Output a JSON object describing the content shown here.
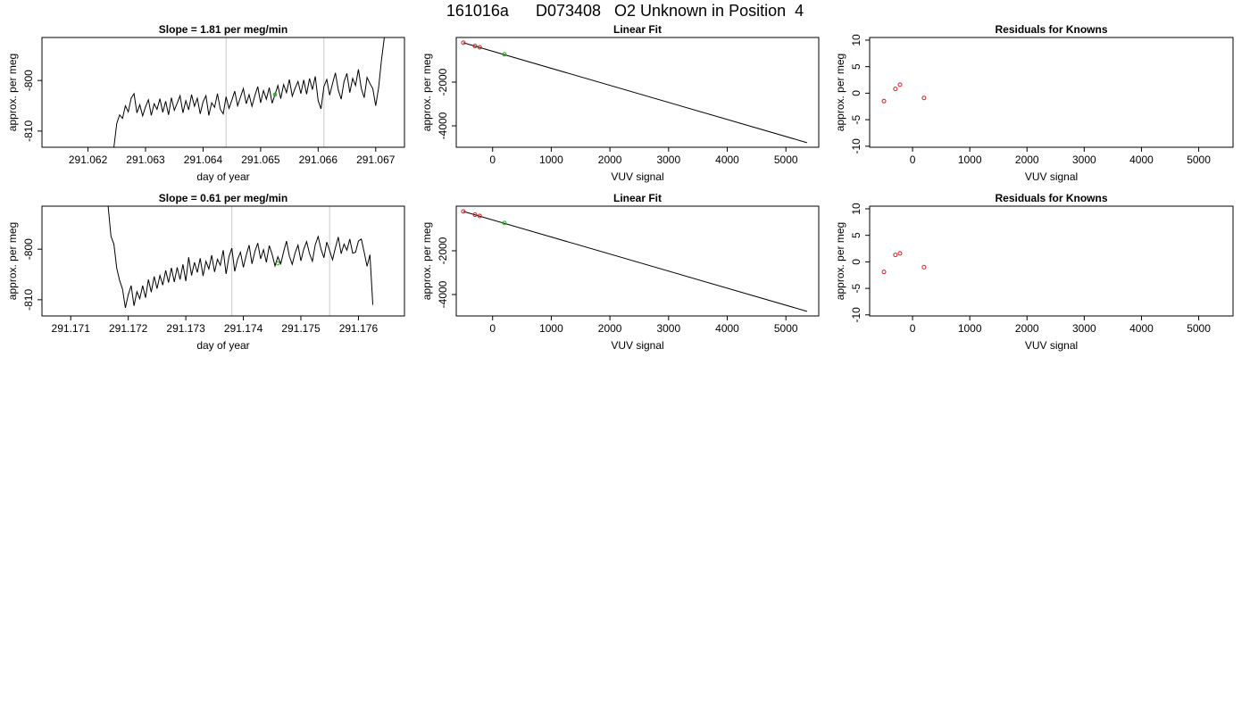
{
  "page": {
    "title": "161016a      D073408   O2 Unknown in Position  4"
  },
  "chart_data": [
    {
      "type": "line",
      "title": "Slope =  1.81  per meg/min",
      "xlabel": "day of year",
      "ylabel": "approx. per meg",
      "xlim": [
        291.0612,
        291.0675
      ],
      "ylim": [
        -813.2,
        -791.5
      ],
      "xticks": [
        291.062,
        291.063,
        291.064,
        291.065,
        291.066,
        291.067
      ],
      "xtick_labels": [
        "291.062",
        "291.063",
        "291.064",
        "291.065",
        "291.066",
        "291.067"
      ],
      "yticks": [
        -810,
        -800
      ],
      "ytick_labels": [
        "-810",
        "-800"
      ],
      "vlines": [
        291.0644,
        291.0661
      ],
      "highlight_point": {
        "x": 291.06525,
        "y": -802.8,
        "color": "#22aa22"
      },
      "series": [
        {
          "color": "#000000",
          "x": [
            291.06245,
            291.0625,
            291.06255,
            291.0626,
            291.06265,
            291.0627,
            291.06275,
            291.0628,
            291.06285,
            291.0629,
            291.06295,
            291.063,
            291.06305,
            291.0631,
            291.06315,
            291.0632,
            291.06325,
            291.0633,
            291.06335,
            291.0634,
            291.06345,
            291.0635,
            291.06355,
            291.0636,
            291.06365,
            291.0637,
            291.06375,
            291.0638,
            291.06385,
            291.0639,
            291.06395,
            291.064,
            291.06405,
            291.0641,
            291.06415,
            291.0642,
            291.06425,
            291.0643,
            291.06435,
            291.0644,
            291.06445,
            291.0645,
            291.06455,
            291.0646,
            291.06465,
            291.0647,
            291.06475,
            291.0648,
            291.06485,
            291.0649,
            291.06495,
            291.065,
            291.06505,
            291.0651,
            291.06515,
            291.0652,
            291.06525,
            291.0653,
            291.06535,
            291.0654,
            291.06545,
            291.0655,
            291.06555,
            291.0656,
            291.06565,
            291.0657,
            291.06575,
            291.0658,
            291.06585,
            291.0659,
            291.06595,
            291.066,
            291.06605,
            291.0661,
            291.06615,
            291.0662,
            291.06625,
            291.0663,
            291.06635,
            291.0664,
            291.06645,
            291.0665,
            291.06655,
            291.0666,
            291.06665,
            291.0667,
            291.06675,
            291.0668,
            291.06685,
            291.0669,
            291.06695,
            291.067,
            291.06705,
            291.0671,
            291.06715
          ],
          "y": [
            -813.2,
            -808.5,
            -806.8,
            -807.5,
            -805.0,
            -806.2,
            -803.5,
            -802.6,
            -806.4,
            -804.8,
            -807.0,
            -805.2,
            -803.8,
            -806.9,
            -804.6,
            -805.7,
            -803.6,
            -806.3,
            -804.1,
            -806.8,
            -803.4,
            -805.9,
            -804.5,
            -803.0,
            -806.4,
            -804.0,
            -805.8,
            -802.8,
            -805.1,
            -803.5,
            -806.6,
            -804.2,
            -803.0,
            -806.9,
            -804.4,
            -805.3,
            -802.6,
            -805.7,
            -806.6,
            -803.2,
            -805.5,
            -803.9,
            -802.1,
            -805.0,
            -803.3,
            -801.6,
            -804.6,
            -802.8,
            -805.1,
            -803.0,
            -801.2,
            -804.4,
            -802.0,
            -803.7,
            -801.4,
            -804.5,
            -802.8,
            -801.0,
            -803.6,
            -800.8,
            -802.4,
            -799.8,
            -803.1,
            -801.5,
            -800.2,
            -802.6,
            -799.9,
            -802.7,
            -799.6,
            -801.8,
            -799.2,
            -804.0,
            -805.6,
            -801.2,
            -799.8,
            -802.9,
            -800.6,
            -798.5,
            -801.9,
            -803.7,
            -800.2,
            -798.6,
            -802.4,
            -799.6,
            -801.0,
            -797.8,
            -801.6,
            -803.4,
            -799.4,
            -800.6,
            -801.6,
            -805.0,
            -801.5,
            -796.0,
            -791.5
          ]
        }
      ]
    },
    {
      "type": "scatter",
      "title": "Linear Fit",
      "xlabel": "VUV signal",
      "ylabel": "approx. per meg",
      "xlim": [
        -620,
        5560
      ],
      "ylim": [
        -4980,
        40
      ],
      "xticks": [
        0,
        1000,
        2000,
        3000,
        4000,
        5000
      ],
      "xtick_labels": [
        "0",
        "1000",
        "2000",
        "3000",
        "4000",
        "5000"
      ],
      "yticks": [
        -4000,
        -2000
      ],
      "ytick_labels": [
        "-4000",
        "-2000"
      ],
      "fit_line": {
        "x": [
          -500,
          5360
        ],
        "y": [
          -200,
          -4770
        ]
      },
      "points": [
        {
          "x": -500,
          "y": -200,
          "color": "#cc2222"
        },
        {
          "x": -300,
          "y": -350,
          "color": "#cc2222"
        },
        {
          "x": -220,
          "y": -410,
          "color": "#cc2222"
        },
        {
          "x": 200,
          "y": -730,
          "color": "#22aa22"
        }
      ]
    },
    {
      "type": "scatter",
      "title": "Residuals for Knowns",
      "xlabel": "VUV signal",
      "ylabel": "approx. per meg",
      "xlim": [
        -750,
        5600
      ],
      "ylim": [
        -10.2,
        10.5
      ],
      "xticks": [
        0,
        1000,
        2000,
        3000,
        4000,
        5000
      ],
      "xtick_labels": [
        "0",
        "1000",
        "2000",
        "3000",
        "4000",
        "5000"
      ],
      "yticks": [
        -10,
        -5,
        0,
        5,
        10
      ],
      "ytick_labels": [
        "-10",
        "-5",
        "0",
        "5",
        "10"
      ],
      "points": [
        {
          "x": -500,
          "y": -1.5,
          "color": "#cc2222"
        },
        {
          "x": -300,
          "y": 0.8,
          "color": "#cc2222"
        },
        {
          "x": -220,
          "y": 1.6,
          "color": "#cc2222"
        },
        {
          "x": 200,
          "y": -0.9,
          "color": "#cc2222"
        }
      ]
    },
    {
      "type": "line",
      "title": "Slope =  0.61  per meg/min",
      "xlabel": "day of year",
      "ylabel": "approx. per meg",
      "xlim": [
        291.1705,
        291.1768
      ],
      "ylim": [
        -813.2,
        -791.5
      ],
      "xticks": [
        291.171,
        291.172,
        291.173,
        291.174,
        291.175,
        291.176
      ],
      "xtick_labels": [
        "291.171",
        "291.172",
        "291.173",
        "291.174",
        "291.175",
        "291.176"
      ],
      "yticks": [
        -810,
        -800
      ],
      "ytick_labels": [
        "-810",
        "-800"
      ],
      "vlines": [
        291.1738,
        291.1755
      ],
      "highlight_point": {
        "x": 291.1746,
        "y": -802.8,
        "color": "#22aa22"
      },
      "series": [
        {
          "color": "#000000",
          "x": [
            291.17165,
            291.1717,
            291.17175,
            291.1718,
            291.17185,
            291.1719,
            291.17195,
            291.172,
            291.17205,
            291.1721,
            291.17215,
            291.1722,
            291.17225,
            291.1723,
            291.17235,
            291.1724,
            291.17245,
            291.1725,
            291.17255,
            291.1726,
            291.17265,
            291.1727,
            291.17275,
            291.1728,
            291.17285,
            291.1729,
            291.17295,
            291.173,
            291.17305,
            291.1731,
            291.17315,
            291.1732,
            291.17325,
            291.1733,
            291.17335,
            291.1734,
            291.17345,
            291.1735,
            291.17355,
            291.1736,
            291.17365,
            291.1737,
            291.17375,
            291.1738,
            291.17385,
            291.1739,
            291.17395,
            291.174,
            291.17405,
            291.1741,
            291.17415,
            291.1742,
            291.17425,
            291.1743,
            291.17435,
            291.1744,
            291.17445,
            291.1745,
            291.17455,
            291.1746,
            291.17465,
            291.1747,
            291.17475,
            291.1748,
            291.17485,
            291.1749,
            291.17495,
            291.175,
            291.17505,
            291.1751,
            291.17515,
            291.1752,
            291.17525,
            291.1753,
            291.17535,
            291.1754,
            291.17545,
            291.1755,
            291.17555,
            291.1756,
            291.17565,
            291.1757,
            291.17575,
            291.1758,
            291.17585,
            291.1759,
            291.17595,
            291.176,
            291.17605,
            291.1761,
            291.17615,
            291.1762,
            291.17625
          ],
          "y": [
            -791.5,
            -797.5,
            -799.0,
            -803.8,
            -806.2,
            -807.9,
            -811.6,
            -809.0,
            -807.2,
            -811.2,
            -808.4,
            -809.8,
            -807.2,
            -809.6,
            -806.0,
            -808.5,
            -805.4,
            -807.8,
            -805.2,
            -807.1,
            -804.2,
            -806.6,
            -803.7,
            -806.5,
            -803.6,
            -806.0,
            -803.0,
            -806.3,
            -801.6,
            -805.2,
            -802.6,
            -804.6,
            -801.8,
            -805.3,
            -802.4,
            -803.9,
            -801.2,
            -804.5,
            -802.0,
            -803.2,
            -800.2,
            -804.9,
            -801.5,
            -799.8,
            -804.4,
            -802.0,
            -800.6,
            -803.6,
            -801.2,
            -799.2,
            -802.9,
            -800.5,
            -798.8,
            -801.9,
            -800.1,
            -802.6,
            -799.3,
            -801.0,
            -803.3,
            -801.5,
            -802.9,
            -800.5,
            -798.4,
            -801.4,
            -803.0,
            -800.7,
            -799.2,
            -802.3,
            -800.0,
            -798.5,
            -800.9,
            -802.4,
            -799.1,
            -797.5,
            -800.0,
            -801.7,
            -798.6,
            -800.3,
            -802.1,
            -799.7,
            -797.6,
            -800.9,
            -799.0,
            -800.2,
            -798.0,
            -800.8,
            -800.6,
            -798.4,
            -798.0,
            -800.6,
            -803.4,
            -801.1,
            -811.0
          ]
        }
      ]
    },
    {
      "type": "scatter",
      "title": "Linear Fit",
      "xlabel": "VUV signal",
      "ylabel": "approx. per meg",
      "xlim": [
        -620,
        5560
      ],
      "ylim": [
        -4980,
        40
      ],
      "xticks": [
        0,
        1000,
        2000,
        3000,
        4000,
        5000
      ],
      "xtick_labels": [
        "0",
        "1000",
        "2000",
        "3000",
        "4000",
        "5000"
      ],
      "yticks": [
        -4000,
        -2000
      ],
      "ytick_labels": [
        "-4000",
        "-2000"
      ],
      "fit_line": {
        "x": [
          -500,
          5360
        ],
        "y": [
          -200,
          -4770
        ]
      },
      "points": [
        {
          "x": -500,
          "y": -200,
          "color": "#cc2222"
        },
        {
          "x": -300,
          "y": -350,
          "color": "#cc2222"
        },
        {
          "x": -220,
          "y": -410,
          "color": "#cc2222"
        },
        {
          "x": 200,
          "y": -730,
          "color": "#22aa22"
        }
      ]
    },
    {
      "type": "scatter",
      "title": "Residuals for Knowns",
      "xlabel": "VUV signal",
      "ylabel": "approx. per meg",
      "xlim": [
        -750,
        5600
      ],
      "ylim": [
        -10.2,
        10.5
      ],
      "xticks": [
        0,
        1000,
        2000,
        3000,
        4000,
        5000
      ],
      "xtick_labels": [
        "0",
        "1000",
        "2000",
        "3000",
        "4000",
        "5000"
      ],
      "yticks": [
        -10,
        -5,
        0,
        5,
        10
      ],
      "ytick_labels": [
        "-10",
        "-5",
        "0",
        "5",
        "10"
      ],
      "points": [
        {
          "x": -500,
          "y": -1.9,
          "color": "#cc2222"
        },
        {
          "x": -300,
          "y": 1.3,
          "color": "#cc2222"
        },
        {
          "x": -220,
          "y": 1.6,
          "color": "#cc2222"
        },
        {
          "x": 200,
          "y": -1.0,
          "color": "#cc2222"
        }
      ]
    }
  ]
}
